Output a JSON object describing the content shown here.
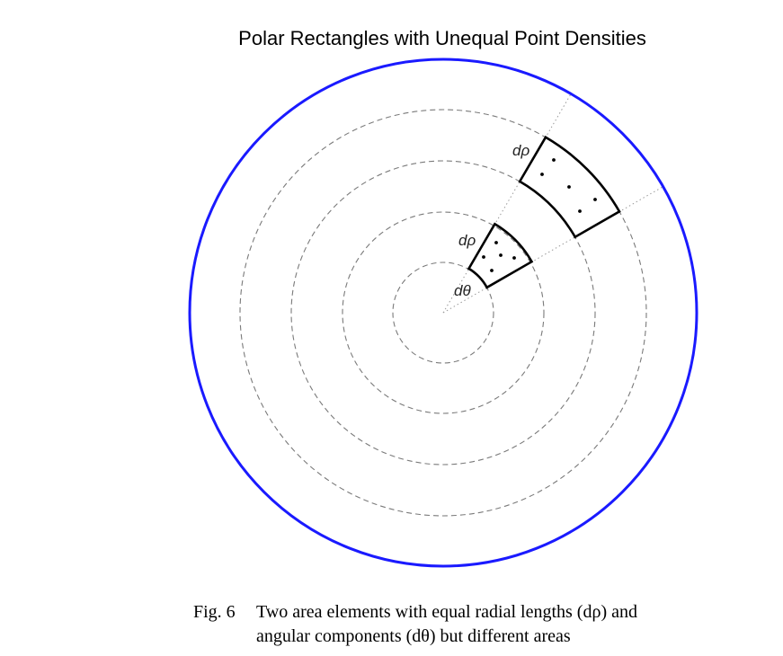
{
  "title": "Polar Rectangles with Unequal Point Densities",
  "caption": {
    "number": "Fig. 6",
    "line1": "Two area elements with equal radial lengths (dρ) and",
    "line2": "angular components (dθ) but different areas"
  },
  "labels": {
    "drho_outer": "dρ",
    "drho_inner": "dρ",
    "dtheta": "dθ"
  },
  "colors": {
    "outer_circle": "#1a1aff",
    "dashed_circles": "#7a7a7a",
    "element_outline": "#000000",
    "radial_lines": "#9a9a9a"
  }
}
